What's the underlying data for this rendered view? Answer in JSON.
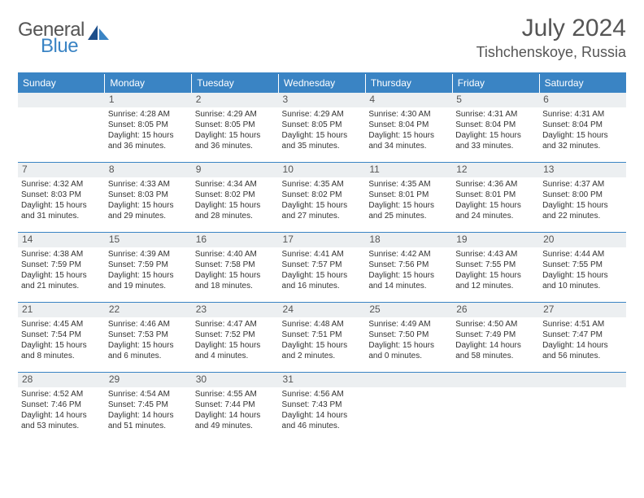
{
  "brand": {
    "general": "General",
    "blue": "Blue"
  },
  "header": {
    "title": "July 2024",
    "location": "Tishchenskoye, Russia"
  },
  "colors": {
    "accent": "#3a84c4",
    "daybar": "#eceff1",
    "text": "#333333",
    "heading": "#555555",
    "background": "#ffffff"
  },
  "weekdays": [
    "Sunday",
    "Monday",
    "Tuesday",
    "Wednesday",
    "Thursday",
    "Friday",
    "Saturday"
  ],
  "weeks": [
    [
      {
        "day": "",
        "sunrise": "",
        "sunset": "",
        "daylight1": "",
        "daylight2": ""
      },
      {
        "day": "1",
        "sunrise": "Sunrise: 4:28 AM",
        "sunset": "Sunset: 8:05 PM",
        "daylight1": "Daylight: 15 hours",
        "daylight2": "and 36 minutes."
      },
      {
        "day": "2",
        "sunrise": "Sunrise: 4:29 AM",
        "sunset": "Sunset: 8:05 PM",
        "daylight1": "Daylight: 15 hours",
        "daylight2": "and 36 minutes."
      },
      {
        "day": "3",
        "sunrise": "Sunrise: 4:29 AM",
        "sunset": "Sunset: 8:05 PM",
        "daylight1": "Daylight: 15 hours",
        "daylight2": "and 35 minutes."
      },
      {
        "day": "4",
        "sunrise": "Sunrise: 4:30 AM",
        "sunset": "Sunset: 8:04 PM",
        "daylight1": "Daylight: 15 hours",
        "daylight2": "and 34 minutes."
      },
      {
        "day": "5",
        "sunrise": "Sunrise: 4:31 AM",
        "sunset": "Sunset: 8:04 PM",
        "daylight1": "Daylight: 15 hours",
        "daylight2": "and 33 minutes."
      },
      {
        "day": "6",
        "sunrise": "Sunrise: 4:31 AM",
        "sunset": "Sunset: 8:04 PM",
        "daylight1": "Daylight: 15 hours",
        "daylight2": "and 32 minutes."
      }
    ],
    [
      {
        "day": "7",
        "sunrise": "Sunrise: 4:32 AM",
        "sunset": "Sunset: 8:03 PM",
        "daylight1": "Daylight: 15 hours",
        "daylight2": "and 31 minutes."
      },
      {
        "day": "8",
        "sunrise": "Sunrise: 4:33 AM",
        "sunset": "Sunset: 8:03 PM",
        "daylight1": "Daylight: 15 hours",
        "daylight2": "and 29 minutes."
      },
      {
        "day": "9",
        "sunrise": "Sunrise: 4:34 AM",
        "sunset": "Sunset: 8:02 PM",
        "daylight1": "Daylight: 15 hours",
        "daylight2": "and 28 minutes."
      },
      {
        "day": "10",
        "sunrise": "Sunrise: 4:35 AM",
        "sunset": "Sunset: 8:02 PM",
        "daylight1": "Daylight: 15 hours",
        "daylight2": "and 27 minutes."
      },
      {
        "day": "11",
        "sunrise": "Sunrise: 4:35 AM",
        "sunset": "Sunset: 8:01 PM",
        "daylight1": "Daylight: 15 hours",
        "daylight2": "and 25 minutes."
      },
      {
        "day": "12",
        "sunrise": "Sunrise: 4:36 AM",
        "sunset": "Sunset: 8:01 PM",
        "daylight1": "Daylight: 15 hours",
        "daylight2": "and 24 minutes."
      },
      {
        "day": "13",
        "sunrise": "Sunrise: 4:37 AM",
        "sunset": "Sunset: 8:00 PM",
        "daylight1": "Daylight: 15 hours",
        "daylight2": "and 22 minutes."
      }
    ],
    [
      {
        "day": "14",
        "sunrise": "Sunrise: 4:38 AM",
        "sunset": "Sunset: 7:59 PM",
        "daylight1": "Daylight: 15 hours",
        "daylight2": "and 21 minutes."
      },
      {
        "day": "15",
        "sunrise": "Sunrise: 4:39 AM",
        "sunset": "Sunset: 7:59 PM",
        "daylight1": "Daylight: 15 hours",
        "daylight2": "and 19 minutes."
      },
      {
        "day": "16",
        "sunrise": "Sunrise: 4:40 AM",
        "sunset": "Sunset: 7:58 PM",
        "daylight1": "Daylight: 15 hours",
        "daylight2": "and 18 minutes."
      },
      {
        "day": "17",
        "sunrise": "Sunrise: 4:41 AM",
        "sunset": "Sunset: 7:57 PM",
        "daylight1": "Daylight: 15 hours",
        "daylight2": "and 16 minutes."
      },
      {
        "day": "18",
        "sunrise": "Sunrise: 4:42 AM",
        "sunset": "Sunset: 7:56 PM",
        "daylight1": "Daylight: 15 hours",
        "daylight2": "and 14 minutes."
      },
      {
        "day": "19",
        "sunrise": "Sunrise: 4:43 AM",
        "sunset": "Sunset: 7:55 PM",
        "daylight1": "Daylight: 15 hours",
        "daylight2": "and 12 minutes."
      },
      {
        "day": "20",
        "sunrise": "Sunrise: 4:44 AM",
        "sunset": "Sunset: 7:55 PM",
        "daylight1": "Daylight: 15 hours",
        "daylight2": "and 10 minutes."
      }
    ],
    [
      {
        "day": "21",
        "sunrise": "Sunrise: 4:45 AM",
        "sunset": "Sunset: 7:54 PM",
        "daylight1": "Daylight: 15 hours",
        "daylight2": "and 8 minutes."
      },
      {
        "day": "22",
        "sunrise": "Sunrise: 4:46 AM",
        "sunset": "Sunset: 7:53 PM",
        "daylight1": "Daylight: 15 hours",
        "daylight2": "and 6 minutes."
      },
      {
        "day": "23",
        "sunrise": "Sunrise: 4:47 AM",
        "sunset": "Sunset: 7:52 PM",
        "daylight1": "Daylight: 15 hours",
        "daylight2": "and 4 minutes."
      },
      {
        "day": "24",
        "sunrise": "Sunrise: 4:48 AM",
        "sunset": "Sunset: 7:51 PM",
        "daylight1": "Daylight: 15 hours",
        "daylight2": "and 2 minutes."
      },
      {
        "day": "25",
        "sunrise": "Sunrise: 4:49 AM",
        "sunset": "Sunset: 7:50 PM",
        "daylight1": "Daylight: 15 hours",
        "daylight2": "and 0 minutes."
      },
      {
        "day": "26",
        "sunrise": "Sunrise: 4:50 AM",
        "sunset": "Sunset: 7:49 PM",
        "daylight1": "Daylight: 14 hours",
        "daylight2": "and 58 minutes."
      },
      {
        "day": "27",
        "sunrise": "Sunrise: 4:51 AM",
        "sunset": "Sunset: 7:47 PM",
        "daylight1": "Daylight: 14 hours",
        "daylight2": "and 56 minutes."
      }
    ],
    [
      {
        "day": "28",
        "sunrise": "Sunrise: 4:52 AM",
        "sunset": "Sunset: 7:46 PM",
        "daylight1": "Daylight: 14 hours",
        "daylight2": "and 53 minutes."
      },
      {
        "day": "29",
        "sunrise": "Sunrise: 4:54 AM",
        "sunset": "Sunset: 7:45 PM",
        "daylight1": "Daylight: 14 hours",
        "daylight2": "and 51 minutes."
      },
      {
        "day": "30",
        "sunrise": "Sunrise: 4:55 AM",
        "sunset": "Sunset: 7:44 PM",
        "daylight1": "Daylight: 14 hours",
        "daylight2": "and 49 minutes."
      },
      {
        "day": "31",
        "sunrise": "Sunrise: 4:56 AM",
        "sunset": "Sunset: 7:43 PM",
        "daylight1": "Daylight: 14 hours",
        "daylight2": "and 46 minutes."
      },
      {
        "day": "",
        "sunrise": "",
        "sunset": "",
        "daylight1": "",
        "daylight2": ""
      },
      {
        "day": "",
        "sunrise": "",
        "sunset": "",
        "daylight1": "",
        "daylight2": ""
      },
      {
        "day": "",
        "sunrise": "",
        "sunset": "",
        "daylight1": "",
        "daylight2": ""
      }
    ]
  ]
}
